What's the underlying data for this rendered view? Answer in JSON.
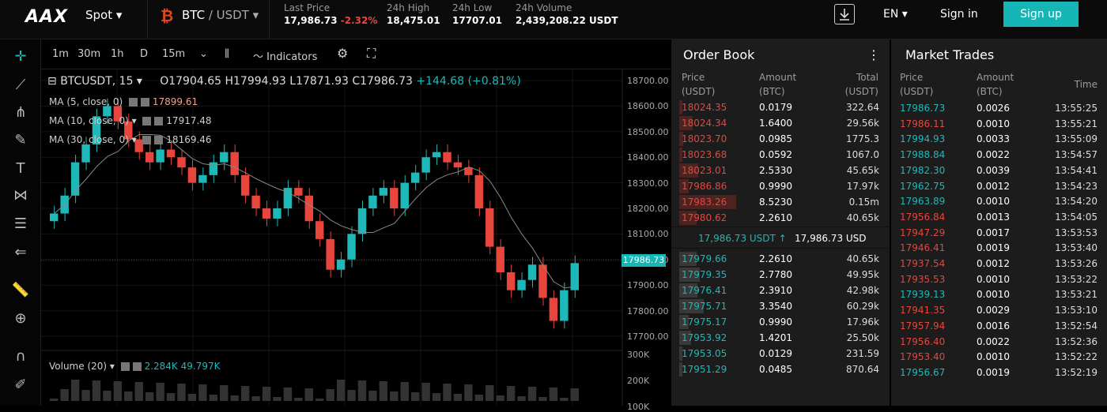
{
  "header": {
    "logo": "AAX",
    "spot": "Spot ▾",
    "base": "BTC",
    "quote": "/ USDT ▾",
    "last_price_label": "Last Price",
    "last_price": "17,986.73",
    "last_change": "-2.32%",
    "high_label": "24h High",
    "high": "18,475.01",
    "low_label": "24h Low",
    "low": "17707.01",
    "vol_label": "24h Volume",
    "vol": "2,439,208.22 USDT",
    "lang": "EN ▾",
    "signin": "Sign in",
    "signup": "Sign up"
  },
  "chart_toolbar": {
    "tf": [
      "1m",
      "30m",
      "1h",
      "D",
      "15m"
    ],
    "indicators": "Indicators"
  },
  "legend": {
    "symbol": "BTCUSDT, 15",
    "open": "O17904.65",
    "high": "H17994.93",
    "low": "L17871.93",
    "close": "C17986.73",
    "change": "+144.68 (+0.81%)",
    "ma5": "MA (5, close, 0)",
    "ma5v": "17899.61",
    "ma10": "MA (10, close, 0)",
    "ma10v": "17917.48",
    "ma30": "MA (30, close, 0)",
    "ma30v": "18169.46",
    "vol": "Volume (20)",
    "vol1": "2.284K",
    "vol2": "49.797K"
  },
  "price_axis": [
    "18700.00",
    "18600.00",
    "18500.00",
    "18400.00",
    "18300.00",
    "18200.00",
    "18100.00",
    "18000.00",
    "17900.00",
    "17800.00",
    "17700.00"
  ],
  "vol_axis": [
    "300K",
    "200K",
    "100K"
  ],
  "current_price_tag": "17986.73",
  "orderbook": {
    "title": "Order Book",
    "h_price": "Price",
    "h_price_u": "(USDT)",
    "h_amount": "Amount",
    "h_amount_u": "(BTC)",
    "h_total": "Total",
    "h_total_u": "(USDT)",
    "asks": [
      [
        "18024.35",
        "0.0179",
        "322.64"
      ],
      [
        "18024.34",
        "1.6400",
        "29.56k"
      ],
      [
        "18023.70",
        "0.0985",
        "1775.3"
      ],
      [
        "18023.68",
        "0.0592",
        "1067.0"
      ],
      [
        "18023.01",
        "2.5330",
        "45.65k"
      ],
      [
        "17986.86",
        "0.9990",
        "17.97k"
      ],
      [
        "17983.26",
        "8.5230",
        "0.15m"
      ],
      [
        "17980.62",
        "2.2610",
        "40.65k"
      ]
    ],
    "mid_usdt": "17,986.73 USDT ↑",
    "mid_usd": "17,986.73 USD",
    "bids": [
      [
        "17979.66",
        "2.2610",
        "40.65k"
      ],
      [
        "17979.35",
        "2.7780",
        "49.95k"
      ],
      [
        "17976.41",
        "2.3910",
        "42.98k"
      ],
      [
        "17975.71",
        "3.3540",
        "60.29k"
      ],
      [
        "17975.17",
        "0.9990",
        "17.96k"
      ],
      [
        "17953.92",
        "1.4201",
        "25.50k"
      ],
      [
        "17953.05",
        "0.0129",
        "231.59"
      ],
      [
        "17951.29",
        "0.0485",
        "870.64"
      ]
    ]
  },
  "trades": {
    "title": "Market Trades",
    "h_price": "Price",
    "h_price_u": "(USDT)",
    "h_amount": "Amount",
    "h_amount_u": "(BTC)",
    "h_time": "Time",
    "rows": [
      [
        "17986.73",
        "0.0026",
        "13:55:25",
        "buy"
      ],
      [
        "17986.11",
        "0.0010",
        "13:55:21",
        "sell"
      ],
      [
        "17994.93",
        "0.0033",
        "13:55:09",
        "buy"
      ],
      [
        "17988.84",
        "0.0022",
        "13:54:57",
        "buy"
      ],
      [
        "17982.30",
        "0.0039",
        "13:54:41",
        "buy"
      ],
      [
        "17962.75",
        "0.0012",
        "13:54:23",
        "buy"
      ],
      [
        "17963.89",
        "0.0010",
        "13:54:20",
        "buy"
      ],
      [
        "17956.84",
        "0.0013",
        "13:54:05",
        "sell"
      ],
      [
        "17947.29",
        "0.0017",
        "13:53:53",
        "sell"
      ],
      [
        "17946.41",
        "0.0019",
        "13:53:40",
        "sell"
      ],
      [
        "17937.54",
        "0.0012",
        "13:53:26",
        "sell"
      ],
      [
        "17935.53",
        "0.0010",
        "13:53:22",
        "sell"
      ],
      [
        "17939.13",
        "0.0010",
        "13:53:21",
        "buy"
      ],
      [
        "17941.35",
        "0.0029",
        "13:53:10",
        "sell"
      ],
      [
        "17957.94",
        "0.0016",
        "13:52:54",
        "sell"
      ],
      [
        "17956.40",
        "0.0022",
        "13:52:36",
        "sell"
      ],
      [
        "17953.40",
        "0.0010",
        "13:52:22",
        "sell"
      ],
      [
        "17956.67",
        "0.0019",
        "13:52:19",
        "buy"
      ]
    ]
  },
  "colors": {
    "up": "#1fb8b8",
    "down": "#e8453c"
  }
}
